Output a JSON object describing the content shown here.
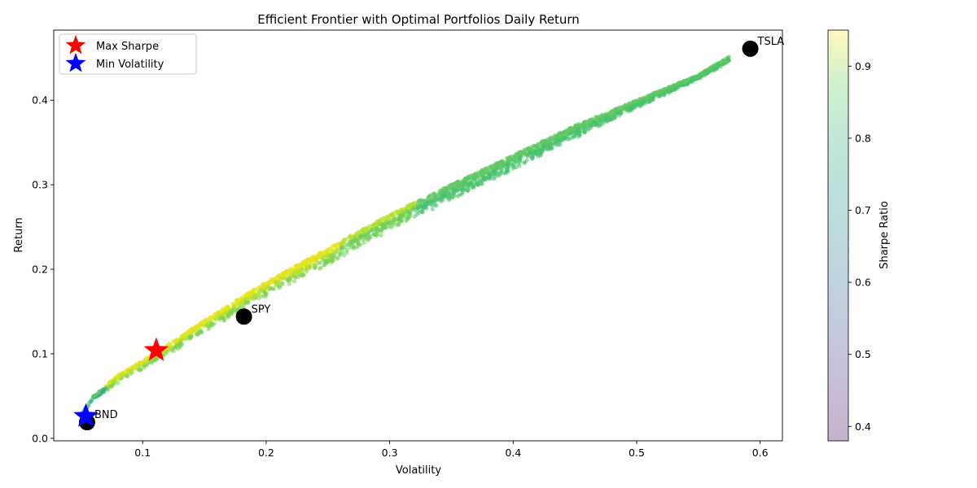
{
  "chart_data": {
    "type": "scatter",
    "title": "Efficient Frontier with Optimal Portfolios Daily Return",
    "xlabel": "Volatility",
    "ylabel": "Return",
    "xlim": [
      0.028,
      0.618
    ],
    "ylim": [
      -0.003,
      0.483
    ],
    "xticks": [
      0.1,
      0.2,
      0.3,
      0.4,
      0.5,
      0.6
    ],
    "yticks": [
      0.0,
      0.1,
      0.2,
      0.3,
      0.4
    ],
    "grid": false,
    "legend": {
      "placement": "upper-left",
      "entries": [
        {
          "label": "Max Sharpe",
          "marker": "star",
          "color": "#ff0000"
        },
        {
          "label": "Min Volatility",
          "marker": "star",
          "color": "#0000ff"
        }
      ]
    },
    "colorbar": {
      "label": "Sharpe Ratio",
      "range": [
        0.38,
        0.95
      ],
      "ticks": [
        0.4,
        0.5,
        0.6,
        0.7,
        0.8,
        0.9
      ],
      "colormap": "viridis (alpha 0.3)"
    },
    "frontier": {
      "description_series": "simulated portfolios",
      "upper_edge": [
        [
          0.051,
          0.03
        ],
        [
          0.06,
          0.05
        ],
        [
          0.08,
          0.075
        ],
        [
          0.1,
          0.092
        ],
        [
          0.12,
          0.11
        ],
        [
          0.15,
          0.14
        ],
        [
          0.2,
          0.185
        ],
        [
          0.25,
          0.225
        ],
        [
          0.3,
          0.265
        ],
        [
          0.35,
          0.3
        ],
        [
          0.4,
          0.335
        ],
        [
          0.45,
          0.37
        ],
        [
          0.5,
          0.4
        ],
        [
          0.55,
          0.43
        ],
        [
          0.575,
          0.452
        ]
      ],
      "lower_edge": [
        [
          0.051,
          0.028
        ],
        [
          0.06,
          0.045
        ],
        [
          0.08,
          0.065
        ],
        [
          0.1,
          0.082
        ],
        [
          0.12,
          0.098
        ],
        [
          0.15,
          0.125
        ],
        [
          0.2,
          0.168
        ],
        [
          0.25,
          0.205
        ],
        [
          0.3,
          0.245
        ],
        [
          0.35,
          0.282
        ],
        [
          0.4,
          0.318
        ],
        [
          0.45,
          0.355
        ],
        [
          0.5,
          0.39
        ],
        [
          0.55,
          0.425
        ],
        [
          0.575,
          0.445
        ]
      ]
    },
    "assets": [
      {
        "name": "TSLA",
        "x": 0.592,
        "y": 0.461
      },
      {
        "name": "SPY",
        "x": 0.182,
        "y": 0.144
      },
      {
        "name": "BND",
        "x": 0.055,
        "y": 0.019
      }
    ],
    "optimal": [
      {
        "name": "Max Sharpe",
        "x": 0.111,
        "y": 0.104,
        "color": "#ff0000"
      },
      {
        "name": "Min Volatility",
        "x": 0.054,
        "y": 0.026,
        "color": "#0000ff"
      }
    ]
  }
}
